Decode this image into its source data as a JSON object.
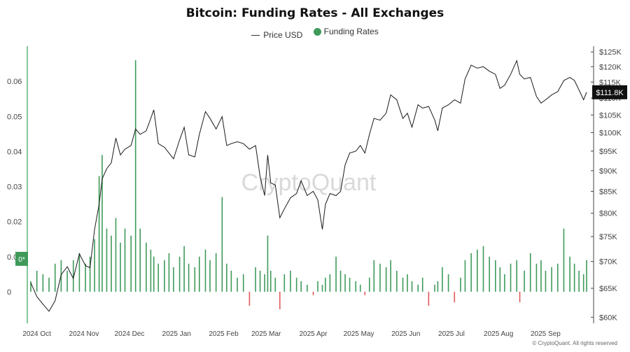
{
  "title": "Bitcoin: Funding Rates - All Exchanges",
  "legend": {
    "price_label": "Price USD",
    "funding_label": "Funding Rates"
  },
  "watermark": "CryptoQuant",
  "credit": "© CryptoQuant. All rights reserved",
  "colors": {
    "funding_positive": "#3f9a5a",
    "funding_negative": "#e05a5a",
    "price_line": "#1a1a1a",
    "axis_line": "#5fb27a",
    "zero_badge": "#3f9a5a",
    "price_badge": "#111111"
  },
  "chart_data": {
    "type": "bar",
    "title": "Bitcoin: Funding Rates - All Exchanges",
    "x_range": [
      "2024-09-27",
      "2025-09-28"
    ],
    "x_ticks": [
      "2024 Oct",
      "2024 Nov",
      "2024 Dec",
      "2025 Jan",
      "2025 Feb",
      "2025 Mar",
      "2025 Apr",
      "2025 May",
      "2025 Jun",
      "2025 Jul",
      "2025 Aug",
      "2025 Sep"
    ],
    "y_left": {
      "name": "Funding Rates",
      "range": [
        -0.009,
        0.07
      ],
      "ticks": [
        "0",
        "0.01",
        "0.02",
        "0.03",
        "0.04",
        "0.05",
        "0.06"
      ]
    },
    "y_right": {
      "name": "Price USD",
      "scale": "log",
      "range": [
        59000,
        127000
      ],
      "ticks": [
        "$60K",
        "$65K",
        "$70K",
        "$75K",
        "$80K",
        "$85K",
        "$90K",
        "$95K",
        "$100K",
        "$105K",
        "$110K",
        "$115K",
        "$120K",
        "$125K"
      ]
    },
    "zero_badge_label": "0*",
    "last_price_label": "$111.8K",
    "series": [
      {
        "name": "Price USD",
        "type": "line",
        "axis": "right",
        "points": [
          [
            "2024-09-27",
            66000
          ],
          [
            "2024-10-01",
            63500
          ],
          [
            "2024-10-05",
            62200
          ],
          [
            "2024-10-09",
            61000
          ],
          [
            "2024-10-13",
            62800
          ],
          [
            "2024-10-17",
            67500
          ],
          [
            "2024-10-21",
            69000
          ],
          [
            "2024-10-25",
            66800
          ],
          [
            "2024-10-29",
            71500
          ],
          [
            "2024-11-02",
            69200
          ],
          [
            "2024-11-05",
            68800
          ],
          [
            "2024-11-08",
            76500
          ],
          [
            "2024-11-11",
            82000
          ],
          [
            "2024-11-13",
            88000
          ],
          [
            "2024-11-16",
            90500
          ],
          [
            "2024-11-19",
            92000
          ],
          [
            "2024-11-22",
            98500
          ],
          [
            "2024-11-25",
            94000
          ],
          [
            "2024-11-28",
            95500
          ],
          [
            "2024-12-02",
            96500
          ],
          [
            "2024-12-05",
            101000
          ],
          [
            "2024-12-08",
            99500
          ],
          [
            "2024-12-12",
            100500
          ],
          [
            "2024-12-15",
            104000
          ],
          [
            "2024-12-17",
            106500
          ],
          [
            "2024-12-20",
            97000
          ],
          [
            "2024-12-24",
            96000
          ],
          [
            "2024-12-27",
            94500
          ],
          [
            "2024-12-30",
            93000
          ],
          [
            "2025-01-03",
            98000
          ],
          [
            "2025-01-06",
            101500
          ],
          [
            "2025-01-09",
            94000
          ],
          [
            "2025-01-13",
            93500
          ],
          [
            "2025-01-16",
            99500
          ],
          [
            "2025-01-20",
            106000
          ],
          [
            "2025-01-23",
            104000
          ],
          [
            "2025-01-27",
            101000
          ],
          [
            "2025-01-31",
            104500
          ],
          [
            "2025-02-03",
            96500
          ],
          [
            "2025-02-06",
            97000
          ],
          [
            "2025-02-10",
            97500
          ],
          [
            "2025-02-14",
            97000
          ],
          [
            "2025-02-18",
            95500
          ],
          [
            "2025-02-22",
            96500
          ],
          [
            "2025-02-25",
            88500
          ],
          [
            "2025-02-28",
            84000
          ],
          [
            "2025-03-02",
            94000
          ],
          [
            "2025-03-04",
            87000
          ],
          [
            "2025-03-07",
            86500
          ],
          [
            "2025-03-10",
            79000
          ],
          [
            "2025-03-13",
            81000
          ],
          [
            "2025-03-17",
            83500
          ],
          [
            "2025-03-21",
            84500
          ],
          [
            "2025-03-24",
            87500
          ],
          [
            "2025-03-28",
            84000
          ],
          [
            "2025-04-01",
            85000
          ],
          [
            "2025-04-04",
            83000
          ],
          [
            "2025-04-07",
            76500
          ],
          [
            "2025-04-09",
            82000
          ],
          [
            "2025-04-12",
            84500
          ],
          [
            "2025-04-16",
            84000
          ],
          [
            "2025-04-19",
            85000
          ],
          [
            "2025-04-22",
            91500
          ],
          [
            "2025-04-25",
            94500
          ],
          [
            "2025-04-29",
            95000
          ],
          [
            "2025-05-02",
            96500
          ],
          [
            "2025-05-05",
            94500
          ],
          [
            "2025-05-08",
            99500
          ],
          [
            "2025-05-11",
            104000
          ],
          [
            "2025-05-15",
            103500
          ],
          [
            "2025-05-19",
            105500
          ],
          [
            "2025-05-22",
            111000
          ],
          [
            "2025-05-26",
            109500
          ],
          [
            "2025-05-30",
            104000
          ],
          [
            "2025-06-02",
            105500
          ],
          [
            "2025-06-05",
            101500
          ],
          [
            "2025-06-09",
            108000
          ],
          [
            "2025-06-12",
            107000
          ],
          [
            "2025-06-16",
            107500
          ],
          [
            "2025-06-20",
            103500
          ],
          [
            "2025-06-22",
            100500
          ],
          [
            "2025-06-25",
            107000
          ],
          [
            "2025-06-29",
            108000
          ],
          [
            "2025-07-03",
            109500
          ],
          [
            "2025-07-07",
            108500
          ],
          [
            "2025-07-10",
            116000
          ],
          [
            "2025-07-14",
            120500
          ],
          [
            "2025-07-18",
            119500
          ],
          [
            "2025-07-22",
            120000
          ],
          [
            "2025-07-26",
            118500
          ],
          [
            "2025-07-30",
            117500
          ],
          [
            "2025-08-02",
            113000
          ],
          [
            "2025-08-05",
            114000
          ],
          [
            "2025-08-09",
            117500
          ],
          [
            "2025-08-13",
            122000
          ],
          [
            "2025-08-15",
            117500
          ],
          [
            "2025-08-18",
            116000
          ],
          [
            "2025-08-22",
            116500
          ],
          [
            "2025-08-26",
            110500
          ],
          [
            "2025-08-29",
            108500
          ],
          [
            "2025-09-01",
            109500
          ],
          [
            "2025-09-05",
            111000
          ],
          [
            "2025-09-09",
            112000
          ],
          [
            "2025-09-13",
            115500
          ],
          [
            "2025-09-17",
            116500
          ],
          [
            "2025-09-20",
            115500
          ],
          [
            "2025-09-23",
            112500
          ],
          [
            "2025-09-26",
            109500
          ],
          [
            "2025-09-28",
            111800
          ]
        ]
      },
      {
        "name": "Funding Rates",
        "type": "bar",
        "axis": "left",
        "points": [
          [
            "2024-09-27",
            0.003
          ],
          [
            "2024-10-01",
            0.006
          ],
          [
            "2024-10-05",
            0.005
          ],
          [
            "2024-10-09",
            0.004
          ],
          [
            "2024-10-13",
            0.008
          ],
          [
            "2024-10-17",
            0.009
          ],
          [
            "2024-10-21",
            0.006
          ],
          [
            "2024-10-25",
            0.009
          ],
          [
            "2024-10-29",
            0.011
          ],
          [
            "2024-11-02",
            0.008
          ],
          [
            "2024-11-05",
            0.01
          ],
          [
            "2024-11-08",
            0.015
          ],
          [
            "2024-11-11",
            0.033
          ],
          [
            "2024-11-13",
            0.039
          ],
          [
            "2024-11-16",
            0.018
          ],
          [
            "2024-11-19",
            0.016
          ],
          [
            "2024-11-22",
            0.021
          ],
          [
            "2024-11-25",
            0.014
          ],
          [
            "2024-11-28",
            0.018
          ],
          [
            "2024-12-02",
            0.016
          ],
          [
            "2024-12-05",
            0.066
          ],
          [
            "2024-12-08",
            0.018
          ],
          [
            "2024-12-12",
            0.014
          ],
          [
            "2024-12-15",
            0.012
          ],
          [
            "2024-12-17",
            0.01
          ],
          [
            "2024-12-20",
            0.008
          ],
          [
            "2024-12-24",
            0.009
          ],
          [
            "2024-12-27",
            0.011
          ],
          [
            "2024-12-30",
            0.007
          ],
          [
            "2025-01-03",
            0.01
          ],
          [
            "2025-01-06",
            0.013
          ],
          [
            "2025-01-09",
            0.008
          ],
          [
            "2025-01-13",
            0.007
          ],
          [
            "2025-01-16",
            0.01
          ],
          [
            "2025-01-20",
            0.012
          ],
          [
            "2025-01-23",
            0.009
          ],
          [
            "2025-01-27",
            0.011
          ],
          [
            "2025-01-31",
            0.027
          ],
          [
            "2025-02-03",
            0.008
          ],
          [
            "2025-02-06",
            0.006
          ],
          [
            "2025-02-10",
            0.004
          ],
          [
            "2025-02-14",
            0.005
          ],
          [
            "2025-02-18",
            -0.004
          ],
          [
            "2025-02-22",
            0.007
          ],
          [
            "2025-02-25",
            0.006
          ],
          [
            "2025-02-28",
            0.005
          ],
          [
            "2025-03-02",
            0.016
          ],
          [
            "2025-03-04",
            0.006
          ],
          [
            "2025-03-07",
            0.004
          ],
          [
            "2025-03-10",
            -0.005
          ],
          [
            "2025-03-13",
            0.005
          ],
          [
            "2025-03-17",
            0.006
          ],
          [
            "2025-03-21",
            0.004
          ],
          [
            "2025-03-24",
            0.003
          ],
          [
            "2025-03-28",
            0.002
          ],
          [
            "2025-04-01",
            -0.001
          ],
          [
            "2025-04-04",
            0.003
          ],
          [
            "2025-04-07",
            0.002
          ],
          [
            "2025-04-09",
            0.004
          ],
          [
            "2025-04-12",
            0.005
          ],
          [
            "2025-04-16",
            0.01
          ],
          [
            "2025-04-19",
            0.006
          ],
          [
            "2025-04-22",
            0.005
          ],
          [
            "2025-04-25",
            0.004
          ],
          [
            "2025-04-29",
            0.003
          ],
          [
            "2025-05-02",
            0.002
          ],
          [
            "2025-05-05",
            -0.001
          ],
          [
            "2025-05-08",
            0.004
          ],
          [
            "2025-05-11",
            0.009
          ],
          [
            "2025-05-15",
            0.008
          ],
          [
            "2025-05-19",
            0.007
          ],
          [
            "2025-05-22",
            0.009
          ],
          [
            "2025-05-26",
            0.006
          ],
          [
            "2025-05-30",
            0.004
          ],
          [
            "2025-06-02",
            0.005
          ],
          [
            "2025-06-05",
            0.003
          ],
          [
            "2025-06-09",
            0.002
          ],
          [
            "2025-06-12",
            0.004
          ],
          [
            "2025-06-16",
            -0.004
          ],
          [
            "2025-06-20",
            0.002
          ],
          [
            "2025-06-22",
            0.003
          ],
          [
            "2025-06-25",
            0.007
          ],
          [
            "2025-06-29",
            0.005
          ],
          [
            "2025-07-03",
            -0.003
          ],
          [
            "2025-07-07",
            0.004
          ],
          [
            "2025-07-10",
            0.009
          ],
          [
            "2025-07-14",
            0.011
          ],
          [
            "2025-07-18",
            0.012
          ],
          [
            "2025-07-22",
            0.013
          ],
          [
            "2025-07-26",
            0.01
          ],
          [
            "2025-07-30",
            0.009
          ],
          [
            "2025-08-02",
            0.007
          ],
          [
            "2025-08-05",
            0.005
          ],
          [
            "2025-08-09",
            0.008
          ],
          [
            "2025-08-13",
            0.009
          ],
          [
            "2025-08-15",
            -0.003
          ],
          [
            "2025-08-18",
            0.006
          ],
          [
            "2025-08-22",
            0.011
          ],
          [
            "2025-08-26",
            0.008
          ],
          [
            "2025-08-29",
            0.009
          ],
          [
            "2025-09-01",
            0.006
          ],
          [
            "2025-09-05",
            0.007
          ],
          [
            "2025-09-09",
            0.008
          ],
          [
            "2025-09-13",
            0.018
          ],
          [
            "2025-09-17",
            0.01
          ],
          [
            "2025-09-20",
            0.008
          ],
          [
            "2025-09-23",
            0.006
          ],
          [
            "2025-09-26",
            0.005
          ],
          [
            "2025-09-28",
            0.009
          ]
        ]
      }
    ]
  }
}
